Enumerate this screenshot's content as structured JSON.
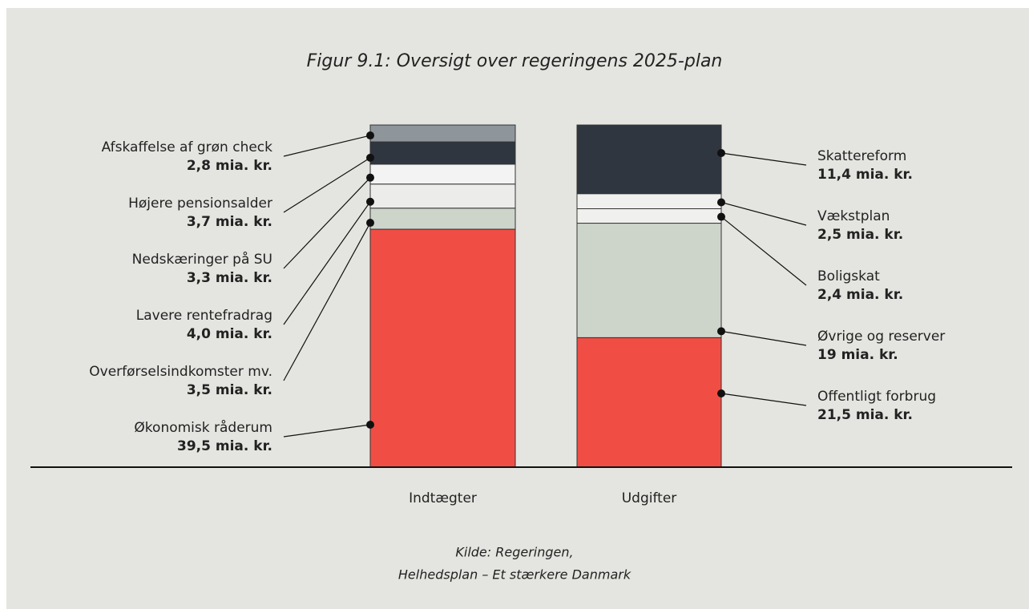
{
  "chart_data": {
    "type": "stacked-bar",
    "title": "Figur 9.1: Oversigt over regeringens 2025-plan",
    "source": [
      "Kilde: Regeringen,",
      "Helhedsplan – Et stærkere Danmark"
    ],
    "categories": [
      "Indtægter",
      "Udgifter"
    ],
    "stacks": [
      [
        {
          "name": "Økonomisk råderum",
          "value": 39.5,
          "value_label": "39,5 mia. kr.",
          "color": "#f04e45"
        },
        {
          "name": "Overførselsindkomster mv.",
          "value": 3.5,
          "value_label": "3,5 mia. kr.",
          "color": "#cdd5cb"
        },
        {
          "name": "Lavere rentefradrag",
          "value": 4.0,
          "value_label": "4,0 mia. kr.",
          "color": "#ecedea"
        },
        {
          "name": "Nedskæringer på SU",
          "value": 3.3,
          "value_label": "3,3 mia. kr.",
          "color": "#f3f3f3"
        },
        {
          "name": "Højere pensionsalder",
          "value": 3.7,
          "value_label": "3,7 mia. kr.",
          "color": "#2f3640"
        },
        {
          "name": "Afskaffelse af grøn check",
          "value": 2.8,
          "value_label": "2,8 mia. kr.",
          "color": "#8e969c"
        }
      ],
      [
        {
          "name": "Offentligt forbrug",
          "value": 21.5,
          "value_label": "21,5 mia. kr.",
          "color": "#f04e45"
        },
        {
          "name": "Øvrige og reserver",
          "value": 19,
          "value_label": "19 mia. kr.",
          "color": "#cdd5cb"
        },
        {
          "name": "Boligskat",
          "value": 2.4,
          "value_label": "2,4 mia. kr.",
          "color": "#f0f0ee"
        },
        {
          "name": "Vækstplan",
          "value": 2.5,
          "value_label": "2,5 mia. kr.",
          "color": "#f0f0ee"
        },
        {
          "name": "Skattereform",
          "value": 11.4,
          "value_label": "11,4 mia. kr.",
          "color": "#2f3640"
        }
      ]
    ]
  }
}
